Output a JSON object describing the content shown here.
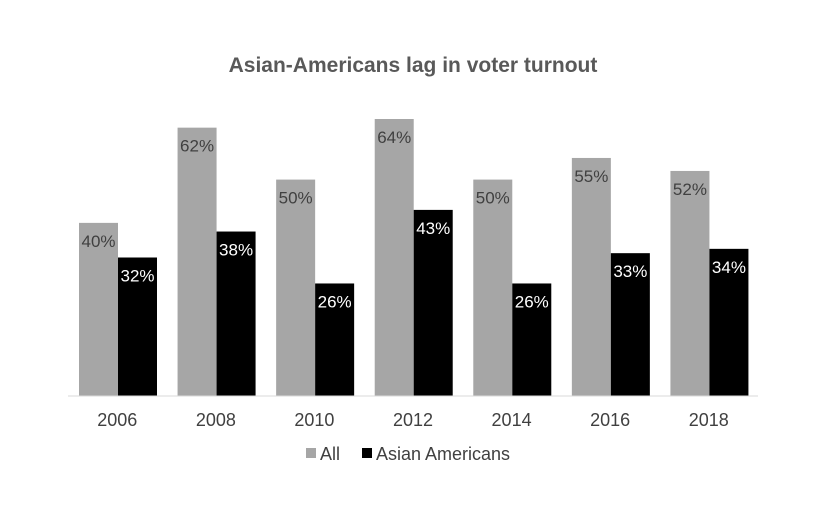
{
  "chart_data": {
    "type": "bar",
    "title": "Asian-Americans lag in voter turnout",
    "categories": [
      "2006",
      "2008",
      "2010",
      "2012",
      "2014",
      "2016",
      "2018"
    ],
    "series": [
      {
        "name": "All",
        "color": "#a6a6a6",
        "label_color": "#404040",
        "values": [
          40,
          62,
          50,
          64,
          50,
          55,
          52
        ],
        "labels": [
          "40%",
          "62%",
          "50%",
          "64%",
          "50%",
          "55%",
          "52%"
        ]
      },
      {
        "name": "Asian Americans",
        "color": "#000000",
        "label_color": "#ffffff",
        "values": [
          32,
          38,
          26,
          43,
          26,
          33,
          34
        ],
        "labels": [
          "32%",
          "38%",
          "26%",
          "43%",
          "26%",
          "33%",
          "34%"
        ]
      }
    ],
    "xlabel": "",
    "ylabel": "",
    "ylim": [
      0,
      64
    ],
    "grid": false,
    "legend_position": "bottom"
  }
}
